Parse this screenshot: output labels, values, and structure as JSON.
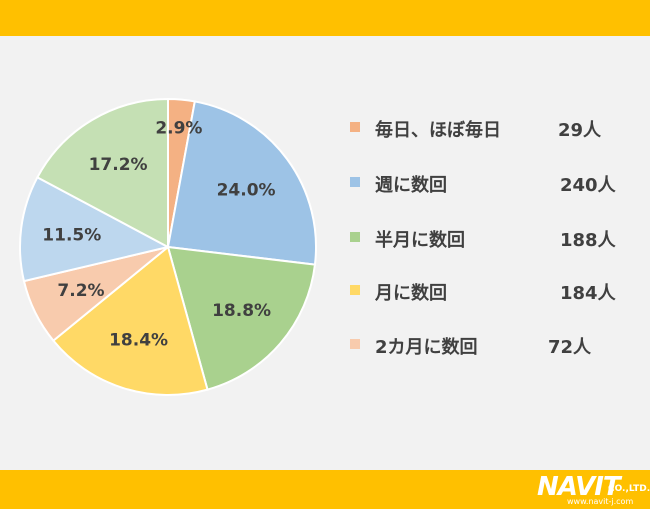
{
  "chart_data": {
    "type": "pie",
    "slices": [
      {
        "label": "毎日、ほぼ毎日",
        "count": "29人",
        "percent": 2.9,
        "percent_label": "2.9%",
        "color": "#F4B183"
      },
      {
        "label": "週に数回",
        "count": "240人",
        "percent": 24.0,
        "percent_label": "24.0%",
        "color": "#9DC3E6"
      },
      {
        "label": "半月に数回",
        "count": "188人",
        "percent": 18.8,
        "percent_label": "18.8%",
        "color": "#A9D18E"
      },
      {
        "label": "月に数回",
        "count": "184人",
        "percent": 18.4,
        "percent_label": "18.4%",
        "color": "#FFD966"
      },
      {
        "label": "2カ月に数回",
        "count": "72人",
        "percent": 7.2,
        "percent_label": "7.2%",
        "color": "#F8CBAD"
      },
      {
        "label": "",
        "count": "",
        "percent": 11.5,
        "percent_label": "11.5%",
        "color": "#BDD7EE"
      },
      {
        "label": "",
        "count": "",
        "percent": 17.2,
        "percent_label": "17.2%",
        "color": "#C5E0B4"
      }
    ],
    "start_angle_deg": 0,
    "direction": "clockwise",
    "legend_position": "right"
  },
  "logo": {
    "word": "NAVIT",
    "company": "CO.,LTD.",
    "url": "www.navit-j.com"
  },
  "colors": {
    "frame": "#FFC000",
    "panel": "#F2F2F2",
    "text": "#404040"
  }
}
